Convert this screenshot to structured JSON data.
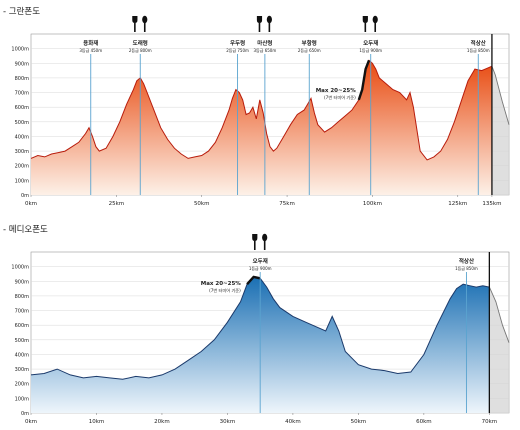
{
  "panels": [
    {
      "title": "- 그란폰도"
    },
    {
      "title": "- 메디오폰도"
    }
  ],
  "colors": {
    "granfondo_fill_top": "#e84a10",
    "granfondo_fill_bottom": "#fdf1e8",
    "granfondo_line": "#b81c0c",
    "mediofondo_fill_top": "#1a6fb3",
    "mediofondo_fill_bottom": "#eef5fb",
    "mediofondo_line": "#1b3a6b",
    "marker_line": "#5aa3cf",
    "grid": "#d8d8d8",
    "finish_line": "#111111",
    "after_finish_fill": "#d4d4d4"
  },
  "chart_data": [
    {
      "type": "area",
      "title": "- 그란폰도",
      "xlabel": "",
      "ylabel": "",
      "xlim": [
        0,
        140
      ],
      "ylim": [
        0,
        1100
      ],
      "x_ticks": [
        "0km",
        "25km",
        "50km",
        "75km",
        "100km",
        "125km",
        "135km"
      ],
      "x_tick_values": [
        0,
        25,
        50,
        75,
        100,
        125,
        135
      ],
      "y_ticks": [
        "0m",
        "100m",
        "200m",
        "300m",
        "400m",
        "500m",
        "600m",
        "700m",
        "800m",
        "900m",
        "1000m"
      ],
      "y_tick_values": [
        0,
        100,
        200,
        300,
        400,
        500,
        600,
        700,
        800,
        900,
        1000
      ],
      "grid": true,
      "finish_km": 135,
      "series": [
        {
          "x": [
            0,
            2,
            4,
            6,
            8,
            10,
            12,
            14,
            16,
            17,
            18,
            19,
            20,
            22,
            24,
            26,
            28,
            30,
            31,
            32,
            33,
            34,
            36,
            38,
            40,
            42,
            44,
            46,
            48,
            50,
            52,
            54,
            56,
            58,
            59,
            60,
            61,
            62,
            63,
            64,
            65,
            66,
            67,
            68,
            69,
            70,
            71,
            72,
            74,
            76,
            78,
            80,
            81,
            82,
            83,
            84,
            86,
            88,
            90,
            92,
            94,
            96,
            97,
            98,
            99,
            100,
            101,
            102,
            104,
            106,
            108,
            110,
            111,
            112,
            114,
            116,
            118,
            120,
            122,
            124,
            126,
            128,
            130,
            132,
            134,
            135,
            136,
            138,
            140
          ],
          "y": [
            250,
            270,
            260,
            280,
            290,
            300,
            330,
            360,
            420,
            460,
            400,
            330,
            300,
            320,
            400,
            500,
            620,
            720,
            780,
            800,
            760,
            700,
            580,
            460,
            380,
            320,
            280,
            250,
            260,
            270,
            300,
            360,
            460,
            580,
            660,
            720,
            700,
            650,
            550,
            560,
            600,
            520,
            650,
            560,
            420,
            330,
            300,
            320,
            400,
            480,
            550,
            580,
            620,
            660,
            560,
            480,
            430,
            460,
            500,
            540,
            580,
            650,
            720,
            860,
            920,
            900,
            860,
            800,
            760,
            720,
            700,
            650,
            700,
            600,
            300,
            240,
            260,
            300,
            380,
            500,
            640,
            780,
            860,
            850,
            870,
            880,
            820,
            640,
            480
          ]
        }
      ],
      "markers": [
        {
          "name": "용화재",
          "sub": "3등급 450m",
          "km": 17.5,
          "food": false
        },
        {
          "name": "도래령",
          "sub": "2등급 800m",
          "km": 32,
          "food": true
        },
        {
          "name": "우두령",
          "sub": "2등급 750m",
          "km": 60.5,
          "food": false
        },
        {
          "name": "마산령",
          "sub": "3등급 650m",
          "km": 68.5,
          "food": true
        },
        {
          "name": "부항령",
          "sub": "2등급 650m",
          "km": 81.5,
          "food": false
        },
        {
          "name": "오두재",
          "sub": "1등급 900m",
          "km": 99.5,
          "food": true
        },
        {
          "name": "적상산",
          "sub": "1등급 850m",
          "km": 131,
          "food": false
        }
      ],
      "annotation": {
        "text": "Max 20~25%",
        "sub": "(7번 터미어 기준)",
        "km_start": 96,
        "km_end": 99.5
      }
    },
    {
      "type": "area",
      "title": "- 메디오폰도",
      "xlabel": "",
      "ylabel": "",
      "xlim": [
        0,
        73
      ],
      "ylim": [
        0,
        1100
      ],
      "x_ticks": [
        "0km",
        "10km",
        "20km",
        "30km",
        "40km",
        "50km",
        "60km",
        "70km"
      ],
      "x_tick_values": [
        0,
        10,
        20,
        30,
        40,
        50,
        60,
        70
      ],
      "y_ticks": [
        "0m",
        "100m",
        "200m",
        "300m",
        "400m",
        "500m",
        "600m",
        "700m",
        "800m",
        "900m",
        "1000m"
      ],
      "y_tick_values": [
        0,
        100,
        200,
        300,
        400,
        500,
        600,
        700,
        800,
        900,
        1000
      ],
      "grid": true,
      "finish_km": 70,
      "series": [
        {
          "x": [
            0,
            2,
            4,
            6,
            8,
            10,
            12,
            14,
            16,
            18,
            20,
            22,
            24,
            26,
            28,
            30,
            32,
            33,
            34,
            35,
            36,
            37,
            38,
            40,
            42,
            44,
            45,
            46,
            47,
            48,
            50,
            52,
            54,
            56,
            58,
            60,
            62,
            64,
            65,
            66,
            67,
            68,
            69,
            70,
            71,
            72,
            73
          ],
          "y": [
            260,
            270,
            300,
            260,
            240,
            250,
            240,
            230,
            250,
            240,
            260,
            300,
            360,
            420,
            500,
            620,
            760,
            880,
            930,
            920,
            860,
            780,
            720,
            660,
            620,
            580,
            560,
            660,
            560,
            420,
            330,
            300,
            290,
            270,
            280,
            400,
            600,
            780,
            850,
            880,
            870,
            860,
            870,
            860,
            760,
            600,
            480
          ]
        }
      ],
      "markers": [
        {
          "name": "오두재",
          "sub": "1등급 900m",
          "km": 35,
          "food": true
        },
        {
          "name": "적상산",
          "sub": "1등급 850m",
          "km": 66.5,
          "food": false
        }
      ],
      "annotation": {
        "text": "Max 20~25%",
        "sub": "(7번 터미어 기준)",
        "km_start": 32.5,
        "km_end": 35
      }
    }
  ]
}
